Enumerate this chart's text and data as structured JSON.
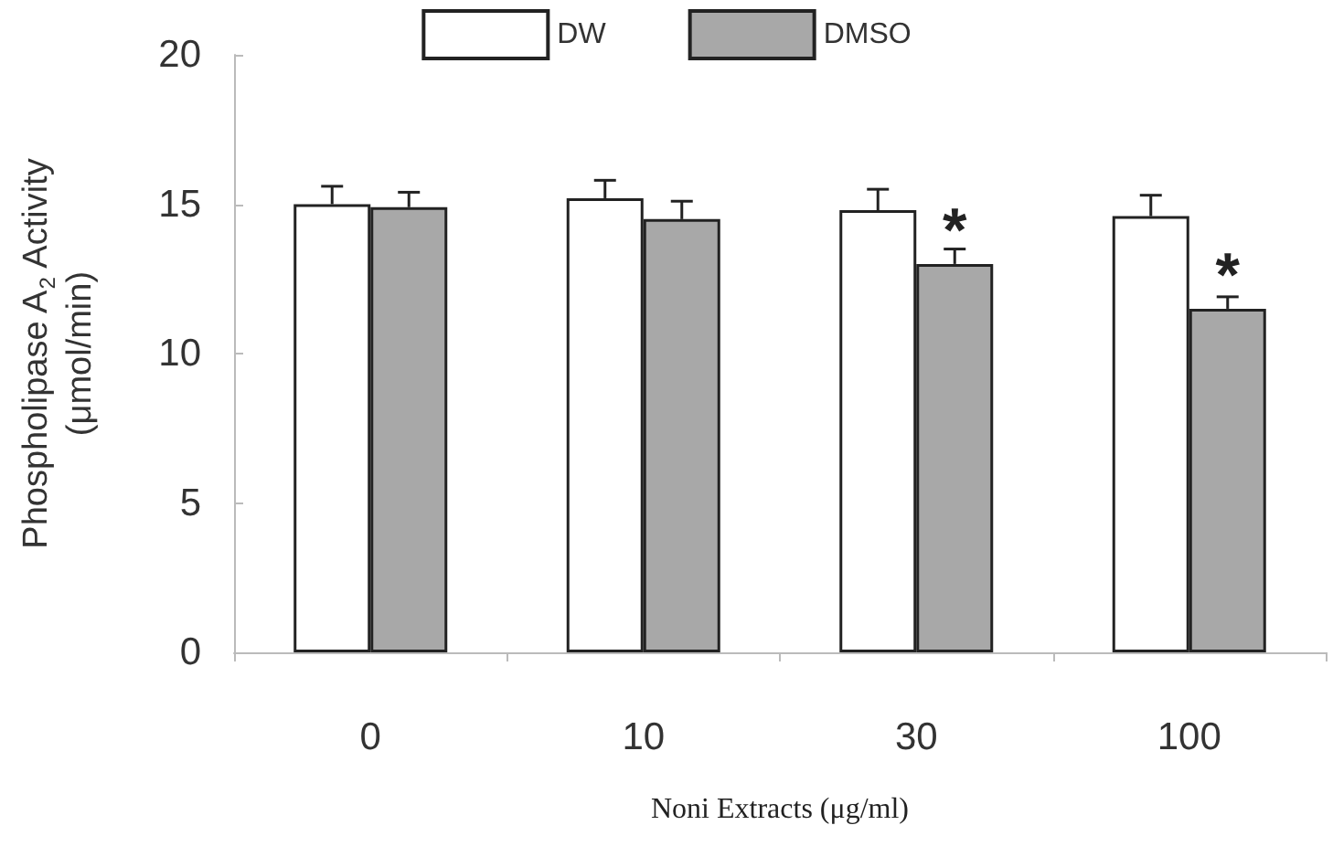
{
  "chart_data": {
    "type": "bar",
    "xlabel": "Noni Extracts (μg/ml)",
    "ylabel": "Phospholipase A$_{2}$ Activity\n(μmol/min)",
    "categories": [
      "0",
      "10",
      "30",
      "100"
    ],
    "series": [
      {
        "name": "DW",
        "color": "#ffffff",
        "values": [
          15.0,
          15.2,
          14.8,
          14.6
        ],
        "errors": [
          [
            15.0,
            15.6
          ],
          [
            15.2,
            15.8
          ],
          [
            14.8,
            15.5
          ],
          [
            14.6,
            15.3
          ]
        ]
      },
      {
        "name": "DMSO",
        "color": "#a8a8a8",
        "values": [
          14.9,
          14.5,
          13.0,
          11.5
        ],
        "errors": [
          [
            14.9,
            15.4
          ],
          [
            14.5,
            15.1
          ],
          [
            13.0,
            13.5
          ],
          [
            11.5,
            11.9
          ]
        ]
      }
    ],
    "annotations": [
      {
        "text": "*",
        "x": "30",
        "y": 14.1
      },
      {
        "text": "*",
        "x": "100",
        "y": 12.6
      }
    ],
    "ylim": [
      0,
      20
    ],
    "yticks": [
      0,
      5,
      10,
      15,
      20
    ],
    "grid": false,
    "legend": "top"
  }
}
